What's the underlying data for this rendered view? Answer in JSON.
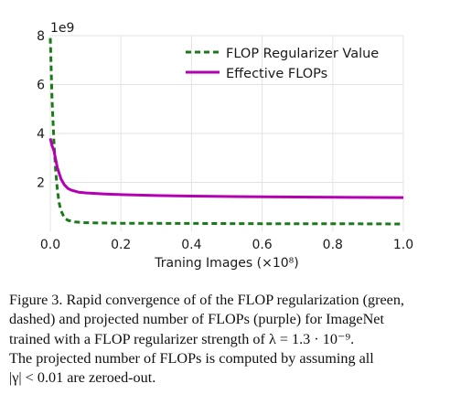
{
  "chart_data": {
    "type": "line",
    "title": "",
    "xlabel": "Traning Images (×10⁸)",
    "ylabel": "",
    "y_scale_label": "1e9",
    "xlim": [
      0.0,
      1.0
    ],
    "ylim": [
      0.0,
      8.0
    ],
    "xticks": [
      0.0,
      0.2,
      0.4,
      0.6,
      0.8,
      1.0
    ],
    "xtick_labels": [
      "0.0",
      "0.2",
      "0.4",
      "0.6",
      "0.8",
      "1.0"
    ],
    "yticks": [
      2,
      4,
      6,
      8
    ],
    "ytick_labels": [
      "2",
      "4",
      "6",
      "8"
    ],
    "grid": true,
    "legend_position": "top-right",
    "series": [
      {
        "name": "FLOP Regularizer Value",
        "color": "#1a7a1a",
        "style": "dashed",
        "x": [
          0.0,
          0.005,
          0.01,
          0.015,
          0.02,
          0.025,
          0.03,
          0.04,
          0.05,
          0.07,
          0.1,
          0.2,
          0.4,
          0.6,
          0.8,
          1.0
        ],
        "y": [
          7.9,
          5.4,
          3.7,
          2.5,
          1.7,
          1.15,
          0.85,
          0.55,
          0.45,
          0.38,
          0.35,
          0.33,
          0.32,
          0.31,
          0.31,
          0.3
        ]
      },
      {
        "name": "Effective FLOPs",
        "color": "#b300b3",
        "style": "solid",
        "x": [
          0.0,
          0.005,
          0.01,
          0.015,
          0.02,
          0.03,
          0.04,
          0.05,
          0.06,
          0.08,
          0.1,
          0.15,
          0.2,
          0.3,
          0.4,
          0.6,
          0.8,
          1.0
        ],
        "y": [
          3.8,
          3.5,
          3.3,
          2.95,
          2.6,
          2.15,
          1.9,
          1.75,
          1.68,
          1.6,
          1.57,
          1.53,
          1.5,
          1.46,
          1.44,
          1.41,
          1.39,
          1.38
        ]
      }
    ]
  },
  "caption": {
    "lines": [
      "Figure 3. Rapid convergence of of the FLOP regularization (green,",
      "dashed) and projected number of FLOPs (purple) for ImageNet",
      "trained with a FLOP regularizer strength of λ  =  1.3 · 10⁻⁹.",
      "The projected number of FLOPs is computed by assuming all",
      "|γ| < 0.01 are zeroed-out."
    ]
  }
}
